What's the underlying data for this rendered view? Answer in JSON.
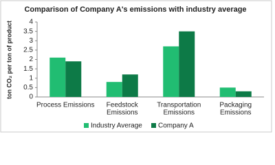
{
  "chart_data": {
    "type": "bar",
    "title": "Comparison of Company A's emissions with industry average",
    "y_label": "ton CO₂ per ton of product",
    "categories": [
      [
        "Process Emissions"
      ],
      [
        "Feedstock",
        "Emissions"
      ],
      [
        "Transportation",
        "Emissions"
      ],
      [
        "Packaging",
        "Emissions"
      ]
    ],
    "series": [
      {
        "name": "Industry Average",
        "color": "#21bd72",
        "values": [
          2.1,
          0.8,
          2.7,
          0.5
        ]
      },
      {
        "name": "Company A",
        "color": "#0d7a47",
        "values": [
          1.9,
          1.2,
          3.5,
          0.3
        ]
      }
    ],
    "ylim": [
      0,
      4
    ],
    "yticks": [
      0,
      0.5,
      1,
      1.5,
      2,
      2.5,
      3,
      3.5,
      4
    ],
    "grid": false,
    "legend": "bottom"
  }
}
